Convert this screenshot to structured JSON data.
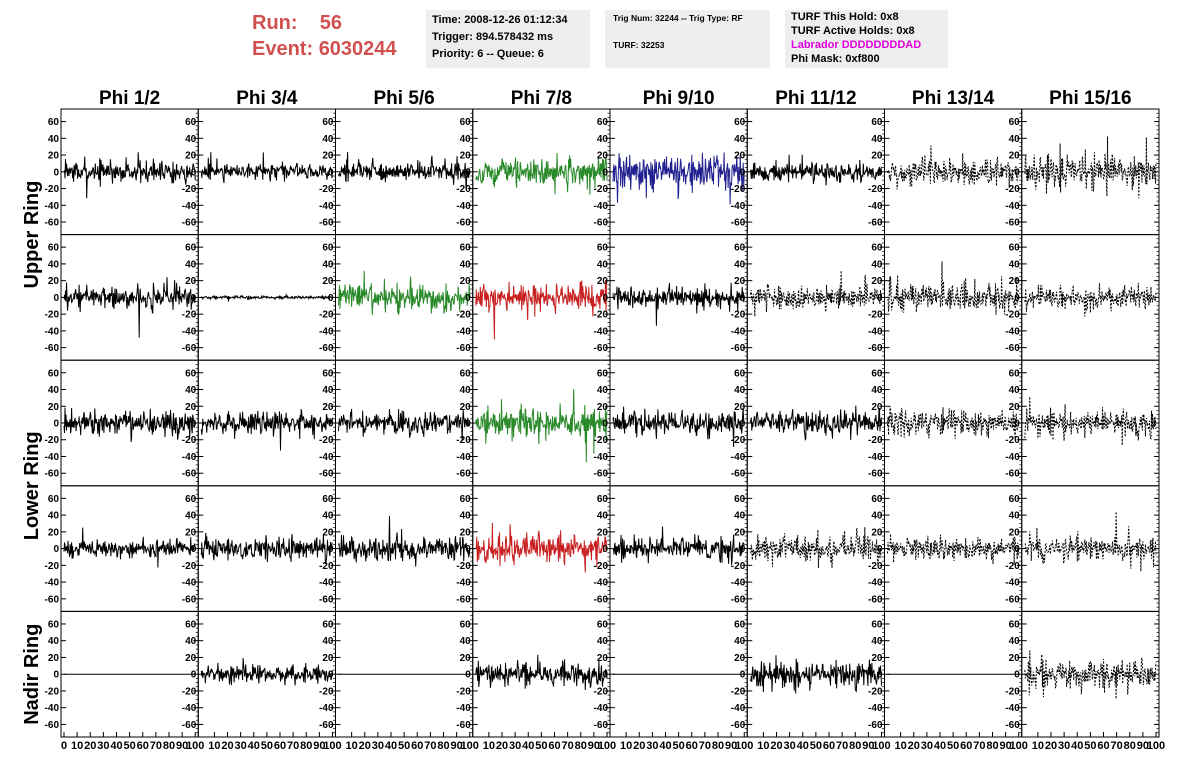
{
  "header": {
    "run_label": "Run:",
    "run_value": "56",
    "event_label": "Event:",
    "event_value": "6030244",
    "time_line": "Time: 2008-12-26 01:12:34",
    "trigger_line": "Trigger: 894.578432 ms",
    "priority_line": "Priority: 6 -- Queue: 6",
    "trig_line": "Trig Num: 32244 -- Trig Type: RF",
    "turf_line": "TURF: 32253",
    "turf_hold_line": "TURF This Hold: 0x8",
    "turf_active_line": "TURF Active Holds: 0x8",
    "labrador_line": "Labrador DDDDDDDDAD",
    "phi_mask_line": "Phi Mask: 0xf800"
  },
  "colors": {
    "run_text": "#d05050",
    "info_bg": "#eeeeee",
    "labrador": "#e000e0",
    "trace_black": "#000000",
    "trace_green": "#2a8a2a",
    "trace_blue": "#202090",
    "trace_red": "#c82020"
  },
  "chart_data": {
    "type": "line",
    "description_grid": "5 rows x 8 columns of waveform panels",
    "columns": [
      "Phi 1/2",
      "Phi 3/4",
      "Phi 5/6",
      "Phi 7/8",
      "Phi 9/10",
      "Phi 11/12",
      "Phi 13/14",
      "Phi 15/16"
    ],
    "rows": [
      {
        "label": "Upper Ring",
        "span": 2
      },
      {
        "label": "Lower Ring",
        "span": 2
      },
      {
        "label": "Nadir Ring",
        "span": 1
      }
    ],
    "ylim": [
      -75,
      75
    ],
    "yticks": [
      -60,
      -40,
      -20,
      0,
      20,
      40,
      60
    ],
    "xlim": [
      0,
      100
    ],
    "xticks": [
      0,
      10,
      20,
      30,
      40,
      50,
      60,
      70,
      80,
      90,
      100
    ],
    "xtick_labels_display": "0 10 20 30 40 50 60 70 80 90 100",
    "panels": [
      [
        {
          "style": "solid",
          "color": "black",
          "amp": 12
        },
        {
          "style": "solid",
          "color": "black",
          "amp": 9
        },
        {
          "style": "solid",
          "color": "black",
          "amp": 11
        },
        {
          "style": "solid",
          "color": "green",
          "amp": 16
        },
        {
          "style": "solid",
          "color": "blue",
          "amp": 20
        },
        {
          "style": "solid",
          "color": "black",
          "amp": 11
        },
        {
          "style": "dashed",
          "color": "black",
          "amp": 16
        },
        {
          "style": "dashed",
          "color": "black",
          "amp": 20
        }
      ],
      [
        {
          "style": "solid",
          "color": "black",
          "amp": 13
        },
        {
          "style": "solid",
          "color": "black",
          "amp": 2
        },
        {
          "style": "solid",
          "color": "green",
          "amp": 16
        },
        {
          "style": "solid",
          "color": "red",
          "amp": 16
        },
        {
          "style": "solid",
          "color": "black",
          "amp": 12
        },
        {
          "style": "dashed",
          "color": "black",
          "amp": 13
        },
        {
          "style": "dashed",
          "color": "black",
          "amp": 17
        },
        {
          "style": "dashed",
          "color": "black",
          "amp": 14
        }
      ],
      [
        {
          "style": "solid",
          "color": "black",
          "amp": 15
        },
        {
          "style": "solid",
          "color": "black",
          "amp": 13
        },
        {
          "style": "solid",
          "color": "black",
          "amp": 13
        },
        {
          "style": "solid",
          "color": "green",
          "amp": 17
        },
        {
          "style": "solid",
          "color": "black",
          "amp": 14
        },
        {
          "style": "solid",
          "color": "black",
          "amp": 14
        },
        {
          "style": "dashed",
          "color": "black",
          "amp": 16
        },
        {
          "style": "dashed",
          "color": "black",
          "amp": 16
        }
      ],
      [
        {
          "style": "solid",
          "color": "black",
          "amp": 10
        },
        {
          "style": "solid",
          "color": "black",
          "amp": 13
        },
        {
          "style": "solid",
          "color": "black",
          "amp": 15
        },
        {
          "style": "solid",
          "color": "red",
          "amp": 17
        },
        {
          "style": "solid",
          "color": "black",
          "amp": 12
        },
        {
          "style": "dashed",
          "color": "black",
          "amp": 16
        },
        {
          "style": "dashed",
          "color": "black",
          "amp": 14
        },
        {
          "style": "dashed",
          "color": "black",
          "amp": 14
        }
      ],
      [
        {
          "style": "flat",
          "color": "black",
          "amp": 0
        },
        {
          "style": "solid",
          "color": "black",
          "amp": 10
        },
        {
          "style": "flat",
          "color": "black",
          "amp": 0
        },
        {
          "style": "solid",
          "color": "black",
          "amp": 14
        },
        {
          "style": "flat",
          "color": "black",
          "amp": 0
        },
        {
          "style": "solid",
          "color": "black",
          "amp": 15
        },
        {
          "style": "flat",
          "color": "black",
          "amp": 0
        },
        {
          "style": "dashed",
          "color": "black",
          "amp": 18
        }
      ]
    ],
    "grid": false,
    "legend": "none"
  }
}
